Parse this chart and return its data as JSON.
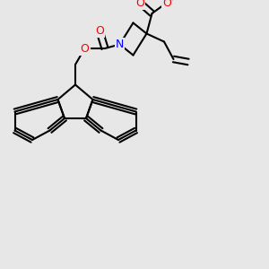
{
  "bg_color": [
    0.906,
    0.906,
    0.906
  ],
  "bond_color": "#000000",
  "bond_lw": 1.5,
  "atom_colors": {
    "O": "#ff0000",
    "N": "#0000ff",
    "H": "#4a9a8a",
    "C": "#000000"
  },
  "font_size": 9,
  "font_size_H": 8
}
